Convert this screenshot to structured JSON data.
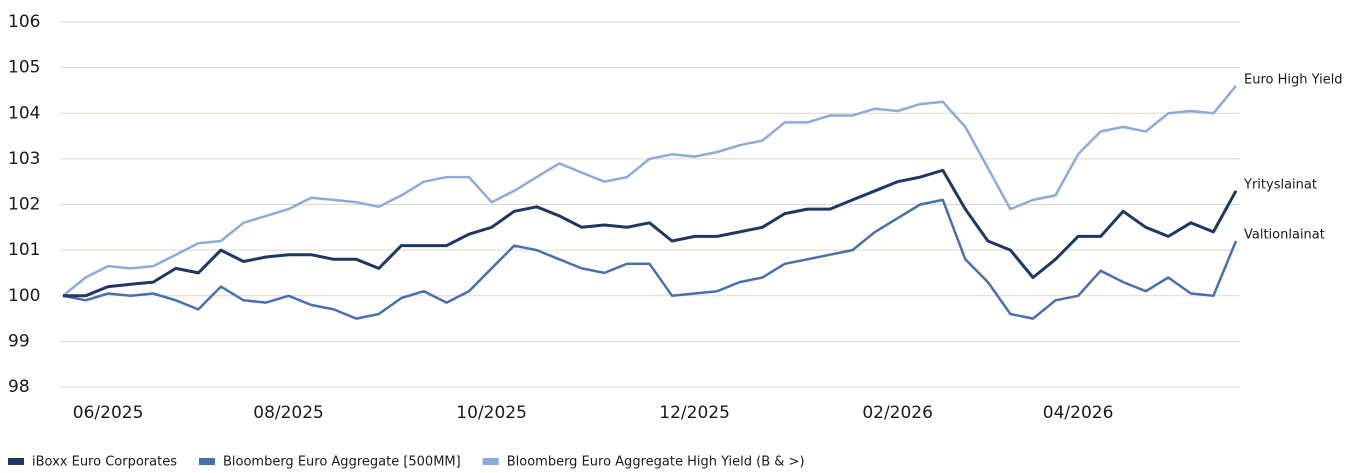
{
  "chart_data": {
    "type": "line",
    "categories": [
      null,
      null,
      "06/2025",
      null,
      null,
      null,
      null,
      null,
      null,
      null,
      "08/2025",
      null,
      null,
      null,
      null,
      null,
      null,
      null,
      null,
      "10/2025",
      null,
      null,
      null,
      null,
      null,
      null,
      null,
      null,
      "12/2025",
      null,
      null,
      null,
      null,
      null,
      null,
      null,
      null,
      "02/2026",
      null,
      null,
      null,
      null,
      null,
      null,
      null,
      "04/2026",
      null,
      null,
      null,
      null,
      null,
      null,
      null
    ],
    "series": [
      {
        "name": "iBoxx Euro Corporates",
        "label": "Yrityslainat",
        "color": "#1f3763",
        "values": [
          100.0,
          100.0,
          100.2,
          100.25,
          100.3,
          100.6,
          100.5,
          101.0,
          100.75,
          100.85,
          100.9,
          100.9,
          100.8,
          100.8,
          100.6,
          101.1,
          101.1,
          101.1,
          101.35,
          101.5,
          101.85,
          101.95,
          101.75,
          101.5,
          101.55,
          101.5,
          101.6,
          101.2,
          101.3,
          101.3,
          101.4,
          101.5,
          101.8,
          101.9,
          101.9,
          102.1,
          102.3,
          102.5,
          102.6,
          102.75,
          101.9,
          101.2,
          101.0,
          100.4,
          100.8,
          101.3,
          101.3,
          101.85,
          101.5,
          101.3,
          101.6,
          101.4,
          102.3
        ]
      },
      {
        "name": "Bloomberg Euro Aggregate [500MM]",
        "label": "Valtionlainat",
        "color": "#4a6fae",
        "values": [
          100.0,
          99.9,
          100.05,
          100.0,
          100.05,
          99.9,
          99.7,
          100.2,
          99.9,
          99.85,
          100.0,
          99.8,
          99.7,
          99.5,
          99.6,
          99.95,
          100.1,
          99.85,
          100.1,
          100.6,
          101.1,
          101.0,
          100.8,
          100.6,
          100.5,
          100.7,
          100.7,
          100.0,
          100.05,
          100.1,
          100.3,
          100.4,
          100.7,
          100.8,
          100.9,
          101.0,
          101.4,
          101.7,
          102.0,
          102.1,
          100.8,
          100.3,
          99.6,
          99.5,
          99.9,
          100.0,
          100.55,
          100.3,
          100.1,
          100.4,
          100.05,
          100.0,
          101.2
        ]
      },
      {
        "name": "Bloomberg Euro Aggregate High Yield (B & >)",
        "label": "Euro High Yield",
        "color": "#8eaadb",
        "values": [
          100.0,
          100.4,
          100.65,
          100.6,
          100.65,
          100.9,
          101.15,
          101.2,
          101.6,
          101.75,
          101.9,
          102.15,
          102.1,
          102.05,
          101.95,
          102.2,
          102.5,
          102.6,
          102.6,
          102.05,
          102.3,
          102.6,
          102.9,
          102.7,
          102.5,
          102.6,
          103.0,
          103.1,
          103.05,
          103.15,
          103.3,
          103.4,
          103.8,
          103.8,
          103.95,
          103.95,
          104.1,
          104.05,
          104.2,
          104.25,
          103.7,
          102.8,
          101.9,
          102.1,
          102.2,
          103.1,
          103.6,
          103.7,
          103.6,
          104.0,
          104.05,
          104.0,
          104.6
        ]
      }
    ],
    "ylim": [
      98,
      106
    ],
    "yticks": [
      98,
      99,
      100,
      101,
      102,
      103,
      104,
      105,
      106
    ],
    "grid": true,
    "legend": "bottom"
  }
}
